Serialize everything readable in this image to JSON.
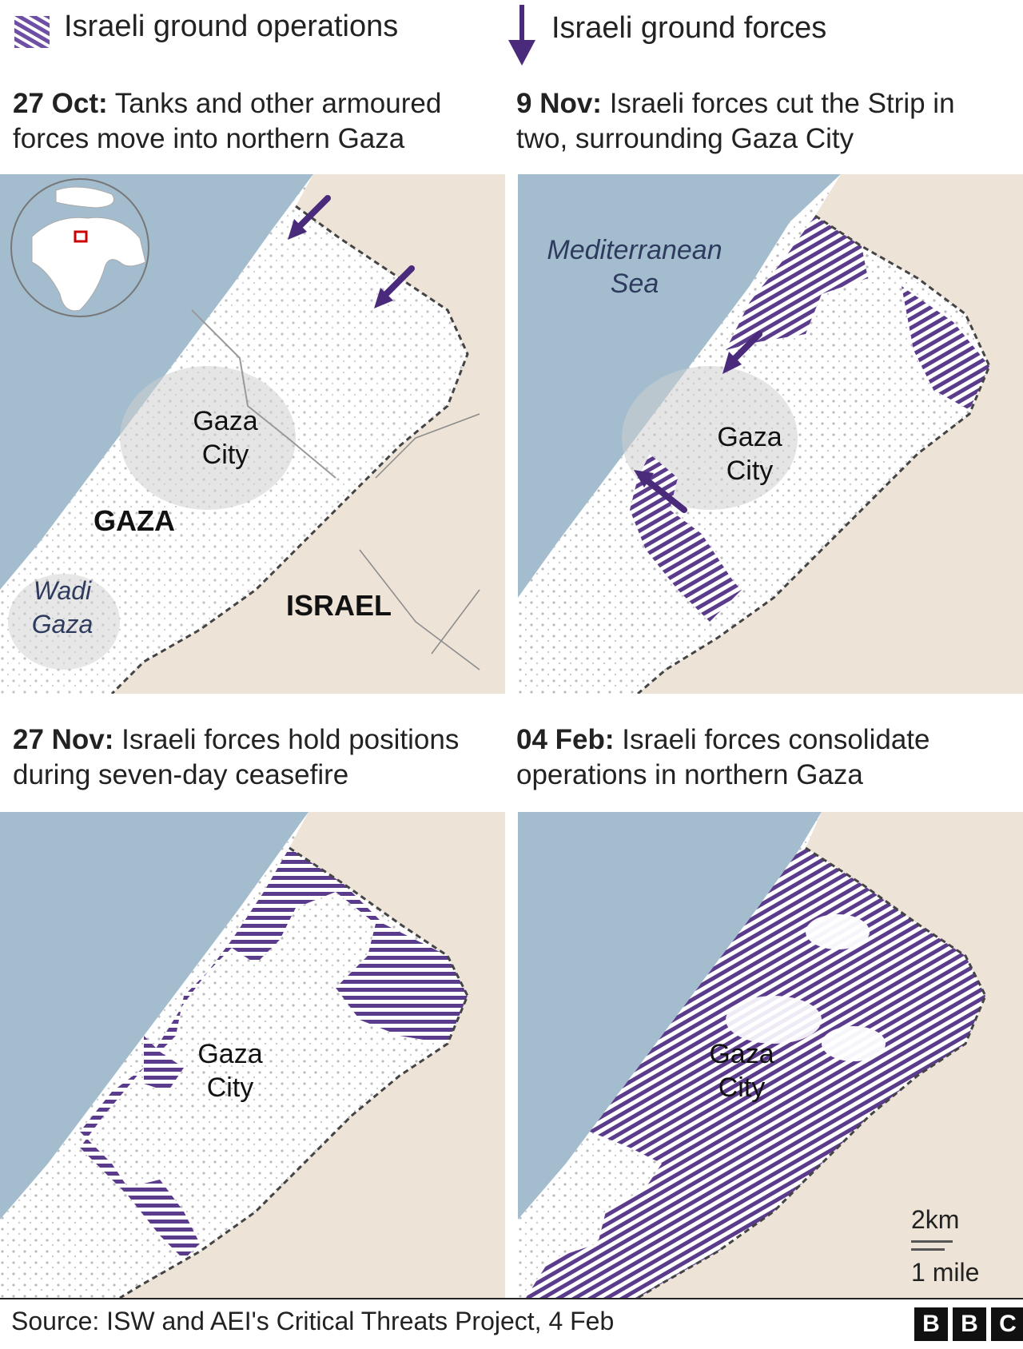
{
  "legend": {
    "operations_label": "Israeli ground operations",
    "forces_label": "Israeli ground forces",
    "hatch_color": "#5b3b8c",
    "arrow_color": "#4a2a7a"
  },
  "panels": [
    {
      "date": "27 Oct:",
      "text": "Tanks and other armoured forces move into northern Gaza"
    },
    {
      "date": "9 Nov:",
      "text": "Israeli forces cut the Strip in two, surrounding Gaza City"
    },
    {
      "date": "27 Nov:",
      "text": "Israeli forces hold positions during seven-day ceasefire"
    },
    {
      "date": "04 Feb:",
      "text": "Israeli forces consolidate operations in northern Gaza"
    }
  ],
  "map_labels": {
    "gaza_city_1": "Gaza",
    "gaza_city_2": "City",
    "gaza": "GAZA",
    "israel": "ISRAEL",
    "wadi_1": "Wadi",
    "wadi_2": "Gaza",
    "sea_1": "Mediterranean",
    "sea_2": "Sea"
  },
  "scale": {
    "km": "2km",
    "mile": "1 mile"
  },
  "source": "Source: ISW and AEI's Critical Threats Project, 4 Feb",
  "brand": [
    "B",
    "B",
    "C"
  ],
  "colors": {
    "sea": "#a3bdce",
    "land_israel": "#ede3d7",
    "land_gaza": "#ffffff",
    "hatch": "#5b3b8c",
    "arrow": "#4a2a7a"
  }
}
